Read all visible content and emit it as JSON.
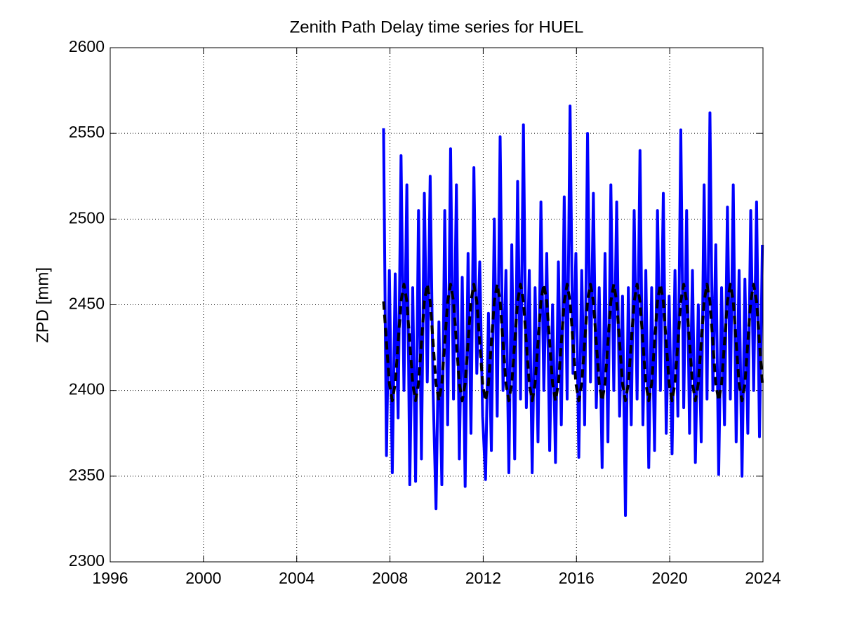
{
  "chart_data": {
    "type": "line",
    "title": "Zenith Path Delay time series for HUEL",
    "y_label": "ZPD [mm]",
    "x": [
      2007.725,
      2007.85,
      2007.975,
      2008.1,
      2008.225,
      2008.35,
      2008.475,
      2008.6,
      2008.725,
      2008.85,
      2008.975,
      2009.1,
      2009.225,
      2009.35,
      2009.475,
      2009.6,
      2009.725,
      2009.85,
      2009.975,
      2010.1,
      2010.225,
      2010.35,
      2010.475,
      2010.6,
      2010.725,
      2010.85,
      2010.975,
      2011.1,
      2011.225,
      2011.35,
      2011.475,
      2011.6,
      2011.725,
      2011.85,
      2011.975,
      2012.1,
      2012.225,
      2012.35,
      2012.475,
      2012.6,
      2012.725,
      2012.85,
      2012.975,
      2013.1,
      2013.225,
      2013.35,
      2013.475,
      2013.6,
      2013.725,
      2013.85,
      2013.975,
      2014.1,
      2014.225,
      2014.35,
      2014.475,
      2014.6,
      2014.725,
      2014.85,
      2014.975,
      2015.1,
      2015.225,
      2015.35,
      2015.475,
      2015.6,
      2015.725,
      2015.85,
      2015.975,
      2016.1,
      2016.225,
      2016.35,
      2016.475,
      2016.6,
      2016.725,
      2016.85,
      2016.975,
      2017.1,
      2017.225,
      2017.35,
      2017.475,
      2017.6,
      2017.725,
      2017.85,
      2017.975,
      2018.1,
      2018.225,
      2018.35,
      2018.475,
      2018.6,
      2018.725,
      2018.85,
      2018.975,
      2019.1,
      2019.225,
      2019.35,
      2019.475,
      2019.6,
      2019.725,
      2019.85,
      2019.975,
      2020.1,
      2020.225,
      2020.35,
      2020.475,
      2020.6,
      2020.725,
      2020.85,
      2020.975,
      2021.1,
      2021.225,
      2021.35,
      2021.475,
      2021.6,
      2021.725,
      2021.85,
      2021.975,
      2022.1,
      2022.225,
      2022.35,
      2022.475,
      2022.6,
      2022.725,
      2022.85,
      2022.975,
      2023.1,
      2023.225,
      2023.35,
      2023.475,
      2023.6,
      2023.725,
      2023.85,
      2023.975
    ],
    "series": [
      {
        "color": "#0000ff",
        "dashed": false,
        "values": [
          2553,
          2362,
          2470,
          2352,
          2468,
          2384,
          2537,
          2400,
          2520,
          2345,
          2460,
          2347,
          2505,
          2360,
          2515,
          2405,
          2525,
          2400,
          2331,
          2440,
          2345,
          2505,
          2380,
          2541,
          2395,
          2520,
          2360,
          2466,
          2344,
          2480,
          2375,
          2530,
          2410,
          2475,
          2385,
          2348,
          2445,
          2365,
          2500,
          2385,
          2548,
          2400,
          2470,
          2352,
          2485,
          2360,
          2522,
          2395,
          2555,
          2390,
          2470,
          2352,
          2460,
          2370,
          2510,
          2400,
          2480,
          2365,
          2450,
          2358,
          2475,
          2380,
          2513,
          2395,
          2566,
          2410,
          2480,
          2361,
          2470,
          2380,
          2550,
          2405,
          2515,
          2390,
          2460,
          2355,
          2480,
          2370,
          2520,
          2400,
          2510,
          2385,
          2455,
          2327,
          2460,
          2380,
          2505,
          2395,
          2540,
          2380,
          2470,
          2355,
          2460,
          2365,
          2505,
          2400,
          2515,
          2375,
          2455,
          2363,
          2470,
          2385,
          2552,
          2390,
          2505,
          2375,
          2470,
          2358,
          2450,
          2370,
          2520,
          2395,
          2562,
          2400,
          2485,
          2351,
          2460,
          2380,
          2507,
          2395,
          2520,
          2370,
          2470,
          2350,
          2465,
          2375,
          2505,
          2400,
          2510,
          2373,
          2485
        ]
      },
      {
        "color": "#000000",
        "dashed": true,
        "values": [
          2452,
          2428,
          2404,
          2394,
          2404,
          2428,
          2452,
          2462,
          2452,
          2428,
          2404,
          2394,
          2404,
          2428,
          2452,
          2462,
          2452,
          2428,
          2404,
          2394,
          2404,
          2428,
          2452,
          2462,
          2452,
          2428,
          2404,
          2394,
          2404,
          2428,
          2452,
          2462,
          2452,
          2428,
          2404,
          2394,
          2404,
          2428,
          2452,
          2462,
          2452,
          2428,
          2404,
          2394,
          2404,
          2428,
          2452,
          2462,
          2452,
          2428,
          2404,
          2394,
          2404,
          2428,
          2452,
          2462,
          2452,
          2428,
          2404,
          2394,
          2404,
          2428,
          2452,
          2462,
          2452,
          2428,
          2404,
          2394,
          2404,
          2428,
          2452,
          2462,
          2452,
          2428,
          2404,
          2394,
          2404,
          2428,
          2452,
          2462,
          2452,
          2428,
          2404,
          2394,
          2404,
          2428,
          2452,
          2462,
          2452,
          2428,
          2404,
          2394,
          2404,
          2428,
          2452,
          2462,
          2452,
          2428,
          2404,
          2394,
          2404,
          2428,
          2452,
          2462,
          2452,
          2428,
          2404,
          2394,
          2404,
          2428,
          2452,
          2462,
          2452,
          2428,
          2404,
          2394,
          2404,
          2428,
          2452,
          2462,
          2452,
          2428,
          2404,
          2394,
          2404,
          2428,
          2452,
          2462,
          2452,
          2428,
          2404
        ]
      }
    ],
    "xlim": [
      1996,
      2024
    ],
    "xticks": [
      1996,
      2000,
      2004,
      2008,
      2012,
      2016,
      2020,
      2024
    ],
    "ylim": [
      2300,
      2600
    ],
    "yticks": [
      2300,
      2350,
      2400,
      2450,
      2500,
      2550,
      2600
    ],
    "grid": true
  }
}
